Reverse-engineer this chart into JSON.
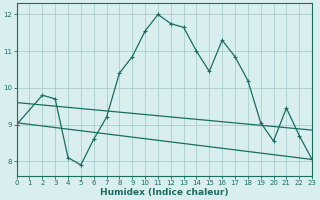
{
  "x": [
    0,
    2,
    3,
    4,
    5,
    6,
    7,
    8,
    9,
    10,
    11,
    12,
    13,
    14,
    15,
    16,
    17,
    18,
    19,
    20,
    21,
    22,
    23
  ],
  "y_main": [
    9.0,
    9.8,
    9.7,
    8.1,
    7.9,
    8.6,
    9.2,
    10.4,
    10.85,
    11.55,
    12.0,
    11.75,
    11.65,
    11.0,
    10.45,
    11.3,
    10.85,
    10.2,
    9.05,
    8.55,
    9.45,
    8.7,
    8.05
  ],
  "trend1_x": [
    0,
    23
  ],
  "trend1_y": [
    9.6,
    8.85
  ],
  "trend2_x": [
    0,
    23
  ],
  "trend2_y": [
    9.05,
    8.05
  ],
  "xlim": [
    0,
    23
  ],
  "ylim": [
    7.6,
    12.3
  ],
  "yticks": [
    8,
    9,
    10,
    11,
    12
  ],
  "xticks": [
    0,
    1,
    2,
    3,
    4,
    5,
    6,
    7,
    8,
    9,
    10,
    11,
    12,
    13,
    14,
    15,
    16,
    17,
    18,
    19,
    20,
    21,
    22,
    23
  ],
  "xlabel": "Humidex (Indice chaleur)",
  "bg_color": "#d9eeee",
  "grid_color": "#aacece",
  "line_color": "#1a6e64",
  "markersize": 3.5,
  "linewidth": 0.9,
  "xlabel_fontsize": 6.5,
  "tick_fontsize": 5.0
}
